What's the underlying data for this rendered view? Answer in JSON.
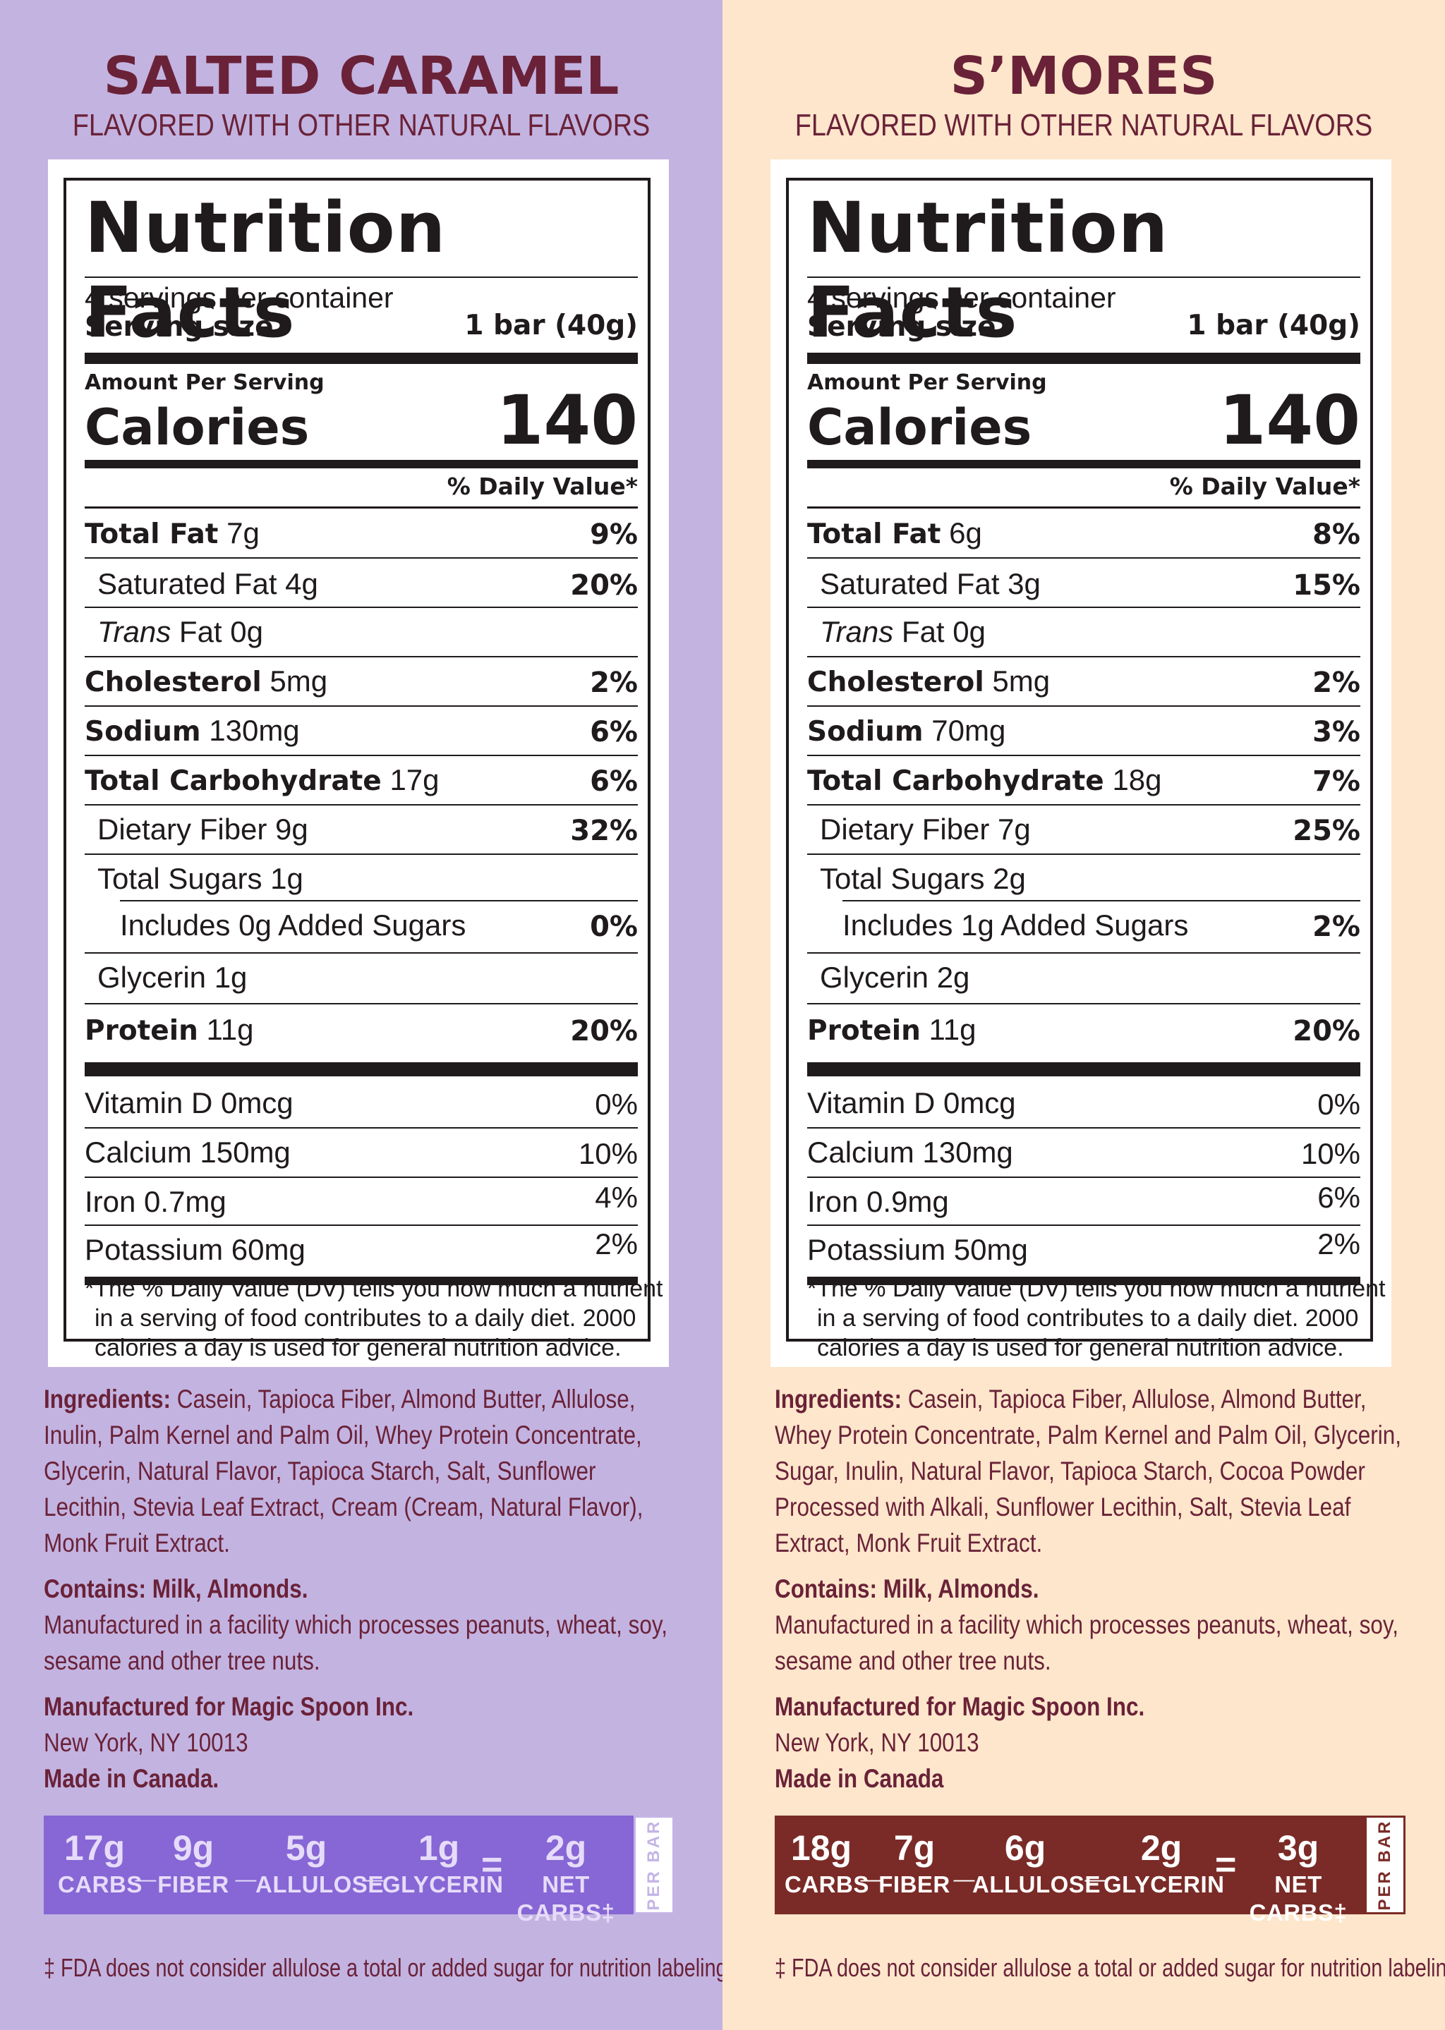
{
  "panels": [
    {
      "flavor": "SALTED CARAMEL",
      "flavored": "FLAVORED WITH OTHER NATURAL FLAVORS",
      "nf": {
        "title": "Nutrition Facts",
        "servings": "4 servings per container",
        "serving_size_label": "Serving size",
        "serving_size_value": "1 bar (40g)",
        "amount_per_serving": "Amount Per Serving",
        "calories_label": "Calories",
        "calories_value": "140",
        "dv_header": "% Daily Value*",
        "total_fat_label": "Total Fat",
        "total_fat_amt": "7g",
        "total_fat_dv": "9%",
        "sat_fat_label": "Saturated Fat 4g",
        "sat_fat_dv": "20%",
        "trans_fat_italic": "Trans",
        "trans_fat_rest": " Fat 0g",
        "cholesterol_label": "Cholesterol",
        "cholesterol_amt": "5mg",
        "cholesterol_dv": "2%",
        "sodium_label": "Sodium",
        "sodium_amt": "130mg",
        "sodium_dv": "6%",
        "carb_label": "Total Carbohydrate",
        "carb_amt": "17g",
        "carb_dv": "6%",
        "fiber_label": "Dietary Fiber 9g",
        "fiber_dv": "32%",
        "sugars_label": "Total Sugars 1g",
        "added_label": "Includes 0g Added Sugars",
        "added_dv": "0%",
        "glycerin_label": "Glycerin 1g",
        "protein_label": "Protein",
        "protein_amt": "11g",
        "protein_dv": "20%",
        "vitd_label": "Vitamin D 0mcg",
        "vitd_dv": "0%",
        "calcium_label": "Calcium 150mg",
        "calcium_dv": "10%",
        "iron_label": "Iron 0.7mg",
        "iron_dv": "4%",
        "potassium_label": "Potassium 60mg",
        "potassium_dv": "2%",
        "footnote_l1": "*The % Daily Value (DV) tells you how much a nutrient",
        "footnote_l2": "in a serving of food contributes to a daily diet. 2000",
        "footnote_l3": "calories a day is used for general nutrition advice."
      },
      "ingredients_label": "Ingredients:",
      "ingredients_l1": " Casein, Tapioca Fiber, Almond Butter, Allulose,",
      "ingredients_l2": "Inulin, Palm Kernel and Palm Oil, Whey Protein Concentrate,",
      "ingredients_l3": "Glycerin, Natural Flavor, Tapioca Starch, Salt, Sunflower",
      "ingredients_l4": "Lecithin, Stevia Leaf Extract, Cream (Cream, Natural Flavor),",
      "ingredients_l5": "Monk Fruit Extract.",
      "contains": "Contains: Milk, Almonds.",
      "facility_l1": "Manufactured in a facility which processes peanuts, wheat, soy,",
      "facility_l2": "sesame and other tree nuts.",
      "manufactured_for": "Manufactured for Magic Spoon Inc.",
      "address": "New York, NY 10013",
      "made_in": "Made in Canada.",
      "carbbar": {
        "carbs_v": "17g",
        "carbs_l": "CARBS",
        "fiber_v": "9g",
        "fiber_l": "FIBER",
        "allulose_v": "5g",
        "allulose_l": "ALLULOSE",
        "glycerin_v": "1g",
        "glycerin_l": "GLYCERIN",
        "net_v": "2g",
        "net_l": "NET CARBS‡",
        "minus": "_",
        "equals": "=",
        "per_bar": "PER BAR"
      },
      "fda": "‡ FDA does not consider allulose a total or added sugar for nutrition labeling."
    },
    {
      "flavor": "S’MORES",
      "flavored": "FLAVORED WITH OTHER NATURAL FLAVORS",
      "nf": {
        "title": "Nutrition Facts",
        "servings": "4 servings per container",
        "serving_size_label": "Serving size",
        "serving_size_value": "1 bar (40g)",
        "amount_per_serving": "Amount Per Serving",
        "calories_label": "Calories",
        "calories_value": "140",
        "dv_header": "% Daily Value*",
        "total_fat_label": "Total Fat",
        "total_fat_amt": "6g",
        "total_fat_dv": "8%",
        "sat_fat_label": "Saturated Fat 3g",
        "sat_fat_dv": "15%",
        "trans_fat_italic": "Trans",
        "trans_fat_rest": " Fat 0g",
        "cholesterol_label": "Cholesterol",
        "cholesterol_amt": "5mg",
        "cholesterol_dv": "2%",
        "sodium_label": "Sodium",
        "sodium_amt": "70mg",
        "sodium_dv": "3%",
        "carb_label": "Total Carbohydrate",
        "carb_amt": "18g",
        "carb_dv": "7%",
        "fiber_label": "Dietary Fiber 7g",
        "fiber_dv": "25%",
        "sugars_label": "Total Sugars 2g",
        "added_label": "Includes 1g Added Sugars",
        "added_dv": "2%",
        "glycerin_label": "Glycerin 2g",
        "protein_label": "Protein",
        "protein_amt": "11g",
        "protein_dv": "20%",
        "vitd_label": "Vitamin D 0mcg",
        "vitd_dv": "0%",
        "calcium_label": "Calcium 130mg",
        "calcium_dv": "10%",
        "iron_label": "Iron 0.9mg",
        "iron_dv": "6%",
        "potassium_label": "Potassium 50mg",
        "potassium_dv": "2%",
        "footnote_l1": "*The % Daily Value (DV) tells you how much a nutrient",
        "footnote_l2": "in a serving of food contributes to a daily diet. 2000",
        "footnote_l3": "calories a day is used for general nutrition advice."
      },
      "ingredients_label": "Ingredients:",
      "ingredients_l1": " Casein, Tapioca Fiber, Allulose, Almond Butter,",
      "ingredients_l2": "Whey Protein Concentrate, Palm Kernel and Palm Oil, Glycerin,",
      "ingredients_l3": "Sugar, Inulin, Natural Flavor, Tapioca Starch, Cocoa Powder",
      "ingredients_l4": "Processed with Alkali, Sunflower Lecithin, Salt, Stevia Leaf",
      "ingredients_l5": "Extract, Monk Fruit Extract.",
      "contains": "Contains: Milk, Almonds.",
      "facility_l1": "Manufactured in a facility which processes peanuts, wheat, soy,",
      "facility_l2": "sesame and other tree nuts.",
      "manufactured_for": "Manufactured for Magic Spoon Inc.",
      "address": "New York, NY 10013",
      "made_in": "Made in Canada",
      "carbbar": {
        "carbs_v": "18g",
        "carbs_l": "CARBS",
        "fiber_v": "7g",
        "fiber_l": "FIBER",
        "allulose_v": "6g",
        "allulose_l": "ALLULOSE",
        "glycerin_v": "2g",
        "glycerin_l": "GLYCERIN",
        "net_v": "3g",
        "net_l": "NET CARBS‡",
        "minus": "_",
        "equals": "=",
        "per_bar": "PER BAR"
      },
      "fda": "‡ FDA does not consider allulose a total or added sugar for nutrition labeling."
    }
  ],
  "colors": {
    "left_bg": "#c3b3e1",
    "right_bg": "#fde6cb",
    "heading": "#6a2238",
    "left_bar": "#8766d5",
    "right_bar": "#7a2b27",
    "ink": "#1f1a1c"
  }
}
